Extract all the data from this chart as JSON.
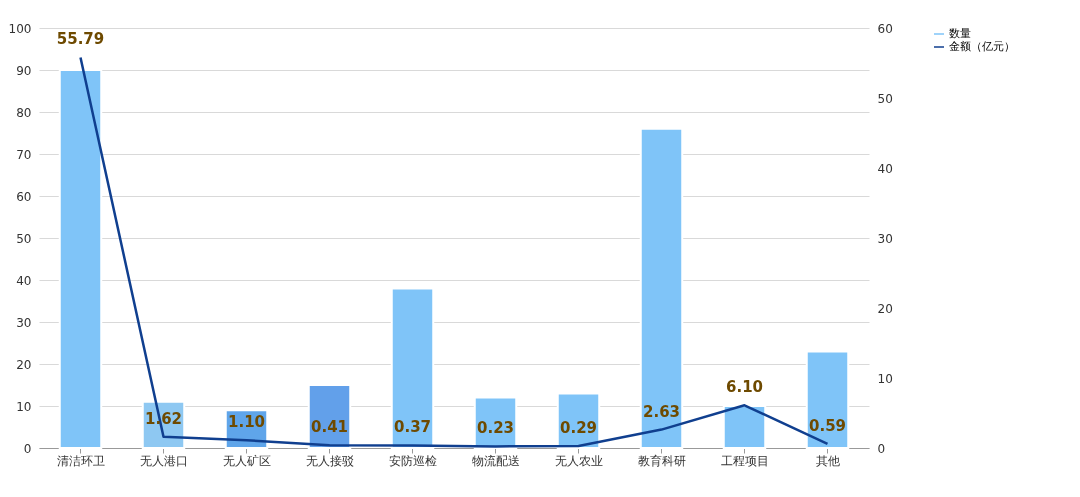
{
  "chart_data": {
    "type": "bar",
    "categories": [
      "清洁环卫",
      "无人港口",
      "无人矿区",
      "无人接驳",
      "安防巡检",
      "物流配送",
      "无人农业",
      "教育科研",
      "工程项目",
      "其他"
    ],
    "series": [
      {
        "name": "数量",
        "axis": "y",
        "color": "#7fc4f8",
        "colors": [
          "#7fc4f8",
          "#8ec8f2",
          "#5fa5ea",
          "#62a0ea",
          "#7fc4f8",
          "#7fc4f8",
          "#7fc4f8",
          "#7fc4f8",
          "#7fc4f8",
          "#7fc4f8"
        ],
        "values": [
          90,
          11,
          9,
          15,
          38,
          12,
          13,
          76,
          10,
          23
        ]
      },
      {
        "name": "金额（亿元）",
        "type": "line",
        "axis": "y2",
        "color": "#103f8f",
        "values": [
          55.79,
          1.62,
          1.1,
          0.41,
          0.37,
          0.23,
          0.29,
          2.63,
          6.1,
          0.59
        ],
        "value_labels": [
          "55.79",
          "1.62",
          "1.10",
          "0.41",
          "0.37",
          "0.23",
          "0.29",
          "2.63",
          "6.10",
          "0.59"
        ]
      }
    ],
    "ylim": [
      0,
      100
    ],
    "yticks": [
      0,
      10,
      20,
      30,
      40,
      50,
      60,
      70,
      80,
      90,
      100
    ],
    "y2lim": [
      0,
      60
    ],
    "y2ticks": [
      0,
      10,
      20,
      30,
      40,
      50,
      60
    ],
    "grid": "y",
    "legend": "right",
    "marker": "none",
    "line_style": "solid"
  }
}
